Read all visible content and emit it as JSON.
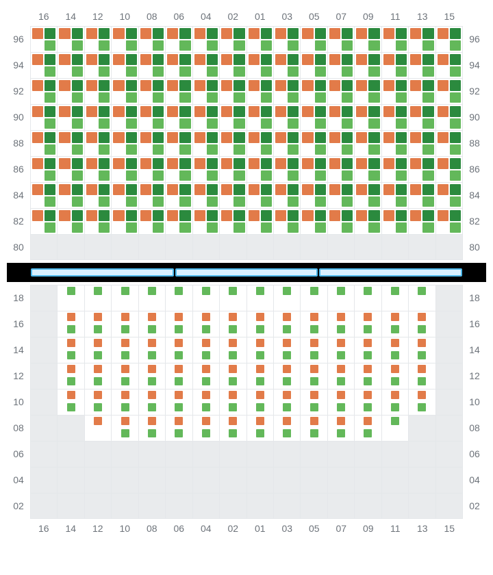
{
  "layout": {
    "cell_columns": 16,
    "divider_segments": 3,
    "divider_background": "#000000",
    "divider_segment_fill": "#d9f0ff",
    "divider_segment_border": "#4db8ea"
  },
  "colors": {
    "orange": "#e27b49",
    "dark_green": "#2b8a3e",
    "green": "#63b85a",
    "gray_cell": "#e9ebed",
    "grid_border": "#e4e7ea",
    "label_text": "#6d737a"
  },
  "column_labels": [
    "16",
    "14",
    "12",
    "10",
    "08",
    "06",
    "04",
    "02",
    "01",
    "03",
    "05",
    "07",
    "09",
    "11",
    "13",
    "15"
  ],
  "upper": {
    "row_labels": [
      "96",
      "94",
      "92",
      "90",
      "88",
      "86",
      "84",
      "82",
      "80"
    ],
    "marks_layout": "quad",
    "quad_colors": [
      "orange",
      "dark_green",
      "_blank",
      "green"
    ],
    "cells": {
      "active_rows": [
        "96",
        "94",
        "92",
        "90",
        "88",
        "86",
        "84",
        "82"
      ],
      "gray_rows": [
        "80"
      ]
    }
  },
  "lower": {
    "row_labels": [
      "18",
      "16",
      "14",
      "12",
      "10",
      "08",
      "06",
      "04",
      "02"
    ],
    "marks_layout": "single",
    "row_patterns": {
      "18": {
        "colors": [
          "green"
        ],
        "active_cols": [
          "14",
          "12",
          "10",
          "08",
          "06",
          "04",
          "02",
          "01",
          "03",
          "05",
          "07",
          "09",
          "11",
          "13"
        ]
      },
      "16": {
        "colors": [
          "orange",
          "green"
        ],
        "active_cols": [
          "14",
          "12",
          "10",
          "08",
          "06",
          "04",
          "02",
          "01",
          "03",
          "05",
          "07",
          "09",
          "11",
          "13"
        ]
      },
      "14": {
        "colors": [
          "orange",
          "green"
        ],
        "active_cols": [
          "14",
          "12",
          "10",
          "08",
          "06",
          "04",
          "02",
          "01",
          "03",
          "05",
          "07",
          "09",
          "11",
          "13"
        ]
      },
      "12": {
        "colors": [
          "orange",
          "green"
        ],
        "active_cols": [
          "14",
          "12",
          "10",
          "08",
          "06",
          "04",
          "02",
          "01",
          "03",
          "05",
          "07",
          "09",
          "11",
          "13"
        ]
      },
      "10": {
        "colors": [
          "orange",
          "green"
        ],
        "active_cols": [
          "14",
          "12",
          "10",
          "08",
          "06",
          "04",
          "02",
          "01",
          "03",
          "05",
          "07",
          "09",
          "11",
          "13"
        ]
      },
      "08": {
        "colors": [
          "orange",
          "green"
        ],
        "active_cols": [
          "12",
          "10",
          "08",
          "06",
          "04",
          "02",
          "01",
          "03",
          "05",
          "07",
          "09",
          "11"
        ],
        "overrides": {
          "12": [
            "orange"
          ],
          "11": [
            "green"
          ]
        }
      },
      "06": {
        "colors": [],
        "active_cols": []
      },
      "04": {
        "colors": [],
        "active_cols": []
      },
      "02": {
        "colors": [],
        "active_cols": []
      }
    }
  }
}
